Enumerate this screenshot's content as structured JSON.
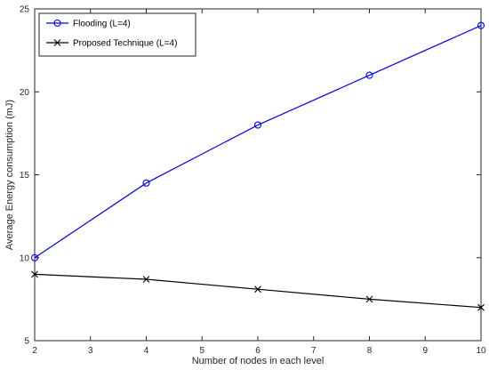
{
  "chart_data": {
    "type": "line",
    "xlabel": "Number of nodes in each level",
    "ylabel": "Average Energy consumption (mJ)",
    "xlim": [
      2,
      10
    ],
    "ylim": [
      5,
      25
    ],
    "xticks": [
      "2",
      "3",
      "4",
      "5",
      "6",
      "7",
      "8",
      "9",
      "10"
    ],
    "yticks": [
      "5",
      "10",
      "15",
      "20",
      "25"
    ],
    "grid": false,
    "legend_position": "top-left",
    "series": [
      {
        "name": "Flooding (L=4)",
        "color": "#0000ff",
        "marker": "circle",
        "x": [
          2,
          4,
          6,
          8,
          10
        ],
        "y": [
          10,
          14.5,
          18,
          21,
          24
        ]
      },
      {
        "name": "Proposed Technique (L=4)",
        "color": "#000000",
        "marker": "x",
        "x": [
          2,
          4,
          6,
          8,
          10
        ],
        "y": [
          9,
          8.7,
          8.1,
          7.5,
          7
        ]
      }
    ]
  }
}
